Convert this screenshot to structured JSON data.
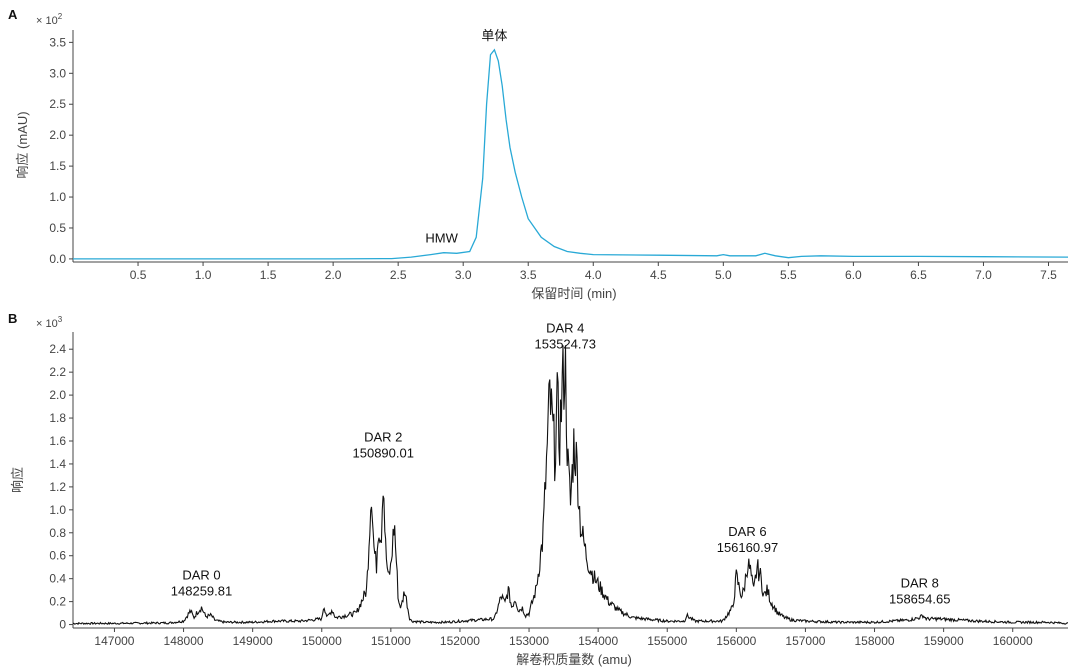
{
  "chart_data": [
    {
      "panel": "A",
      "type": "line",
      "multiplier_prefix": "× 10",
      "multiplier_exp": "2",
      "xlabel": "保留时间 (min)",
      "ylabel": "响应 (mAU)",
      "xlim": [
        0,
        7.65
      ],
      "ylim": [
        -0.05,
        3.7
      ],
      "xticks": [
        "0.5",
        "1.0",
        "1.5",
        "2.0",
        "2.5",
        "3.0",
        "3.5",
        "4.0",
        "4.5",
        "5.0",
        "5.5",
        "6.0",
        "6.5",
        "7.0",
        "7.5"
      ],
      "yticks": [
        "0.0",
        "0.5",
        "1.0",
        "1.5",
        "2.0",
        "2.5",
        "3.0",
        "3.5"
      ],
      "color": "#29a9d6",
      "series": [
        {
          "x": [
            0.0,
            1.0,
            2.0,
            2.45,
            2.6,
            2.75,
            2.85,
            2.95,
            3.05,
            3.1,
            3.15,
            3.18,
            3.21,
            3.24,
            3.27,
            3.3,
            3.33,
            3.36,
            3.4,
            3.45,
            3.5,
            3.6,
            3.7,
            3.8,
            3.9,
            4.0,
            4.5,
            4.95,
            5.0,
            5.05,
            5.25,
            5.32,
            5.4,
            5.5,
            5.6,
            5.75,
            6.0,
            6.5,
            7.0,
            7.65
          ],
          "y": [
            0.0,
            0.0,
            0.0,
            0.005,
            0.03,
            0.07,
            0.1,
            0.09,
            0.12,
            0.35,
            1.3,
            2.5,
            3.3,
            3.38,
            3.2,
            2.8,
            2.25,
            1.8,
            1.4,
            1.0,
            0.65,
            0.35,
            0.2,
            0.12,
            0.09,
            0.07,
            0.06,
            0.05,
            0.07,
            0.05,
            0.05,
            0.09,
            0.05,
            0.02,
            0.04,
            0.05,
            0.04,
            0.04,
            0.035,
            0.03
          ]
        }
      ],
      "annotations": [
        {
          "text": "单体",
          "x": 3.24,
          "y": 3.38
        },
        {
          "text": "HMW",
          "x": 2.85,
          "y": 0.1
        }
      ]
    },
    {
      "panel": "B",
      "type": "line",
      "multiplier_prefix": "× 10",
      "multiplier_exp": "3",
      "xlabel": "解卷积质量数 (amu)",
      "ylabel": "响应",
      "xlim": [
        146400,
        160800
      ],
      "ylim": [
        -0.03,
        2.55
      ],
      "xticks": [
        "147000",
        "148000",
        "149000",
        "150000",
        "151000",
        "152000",
        "153000",
        "154000",
        "155000",
        "156000",
        "157000",
        "158000",
        "159000",
        "160000"
      ],
      "yticks": [
        "0",
        "0.2",
        "0.4",
        "0.6",
        "0.8",
        "1.0",
        "1.2",
        "1.4",
        "1.6",
        "1.8",
        "2.0",
        "2.2",
        "2.4"
      ],
      "color": "#111111",
      "series": [
        {
          "x": [
            146400,
            147000,
            147800,
            148000,
            148100,
            148150,
            148200,
            148260,
            148320,
            148400,
            148450,
            148500,
            148600,
            149000,
            149300,
            149700,
            150000,
            150030,
            150080,
            150150,
            150200,
            150500,
            150650,
            150720,
            150750,
            150790,
            150820,
            150860,
            150890,
            150920,
            150960,
            151000,
            151050,
            151080,
            151110,
            151150,
            151200,
            151230,
            151270,
            151300,
            151500,
            151800,
            152000,
            152500,
            152600,
            152650,
            152700,
            152750,
            152800,
            152850,
            152900,
            152950,
            153000,
            153100,
            153200,
            153300,
            153370,
            153410,
            153440,
            153480,
            153524,
            153560,
            153600,
            153650,
            153700,
            153740,
            153780,
            153830,
            153880,
            153950,
            154050,
            154150,
            154300,
            154500,
            155000,
            155250,
            155280,
            155400,
            155800,
            155950,
            156000,
            156050,
            156080,
            156110,
            156161,
            156200,
            156250,
            156300,
            156350,
            156400,
            156450,
            156500,
            156550,
            156600,
            156700,
            156800,
            157000,
            157500,
            158000,
            158500,
            158650,
            158700,
            158750,
            158900,
            159200,
            159500,
            160000,
            160500,
            160800
          ],
          "y": [
            0.01,
            0.01,
            0.015,
            0.03,
            0.12,
            0.06,
            0.11,
            0.15,
            0.07,
            0.08,
            0.04,
            0.03,
            0.02,
            0.02,
            0.03,
            0.03,
            0.05,
            0.17,
            0.06,
            0.13,
            0.06,
            0.1,
            0.3,
            1.22,
            0.7,
            0.5,
            0.9,
            0.75,
            1.35,
            0.7,
            0.4,
            0.5,
            0.9,
            0.55,
            0.2,
            0.15,
            0.3,
            0.2,
            0.06,
            0.03,
            0.02,
            0.02,
            0.03,
            0.05,
            0.25,
            0.18,
            0.3,
            0.15,
            0.23,
            0.12,
            0.15,
            0.08,
            0.1,
            0.3,
            0.75,
            1.98,
            1.5,
            1.9,
            1.6,
            2.05,
            2.3,
            1.4,
            1.05,
            1.6,
            1.35,
            0.9,
            0.75,
            0.6,
            0.5,
            0.4,
            0.3,
            0.2,
            0.12,
            0.06,
            0.03,
            0.03,
            0.08,
            0.03,
            0.03,
            0.15,
            0.42,
            0.3,
            0.25,
            0.3,
            0.53,
            0.48,
            0.28,
            0.5,
            0.42,
            0.25,
            0.3,
            0.2,
            0.15,
            0.1,
            0.06,
            0.04,
            0.03,
            0.02,
            0.02,
            0.04,
            0.06,
            0.08,
            0.05,
            0.05,
            0.04,
            0.03,
            0.02,
            0.02,
            0.01
          ]
        }
      ],
      "annotations": [
        {
          "name": "DAR 0",
          "mass": "148259.81",
          "x": 148260,
          "y": 0.15
        },
        {
          "name": "DAR 2",
          "mass": "150890.01",
          "x": 150890,
          "y": 1.35
        },
        {
          "name": "DAR 4",
          "mass": "153524.73",
          "x": 153524,
          "y": 2.3
        },
        {
          "name": "DAR 6",
          "mass": "156160.97",
          "x": 156161,
          "y": 0.53
        },
        {
          "name": "DAR 8",
          "mass": "158654.65",
          "x": 158654,
          "y": 0.08
        }
      ]
    }
  ]
}
